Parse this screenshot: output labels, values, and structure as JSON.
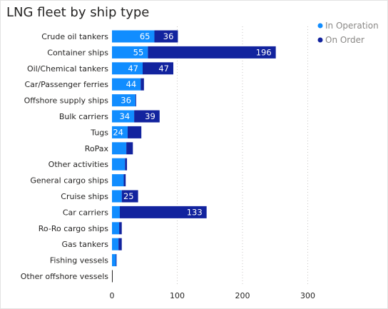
{
  "chart_data": {
    "type": "bar",
    "orientation": "horizontal",
    "stacked": true,
    "title": "LNG fleet by ship type",
    "xlabel": "",
    "ylabel": "",
    "xlim": [
      0,
      300
    ],
    "x_ticks": [
      0,
      100,
      200,
      300
    ],
    "grid": true,
    "legend_position": "top-right",
    "categories": [
      "Crude oil tankers",
      "Container ships",
      "Oil/Chemical tankers",
      "Car/Passenger ferries",
      "Offshore supply ships",
      "Bulk carriers",
      "Tugs",
      "RoPax",
      "Other activities",
      "General cargo ships",
      "Cruise ships",
      "Car carriers",
      "Ro-Ro cargo ships",
      "Gas tankers",
      "Fishing vessels",
      "Other offshore vessels"
    ],
    "series": [
      {
        "name": "In Operation",
        "color": "#118DFF",
        "values": [
          65,
          55,
          47,
          44,
          36,
          34,
          24,
          22,
          20,
          18,
          15,
          12,
          11,
          10,
          6,
          1
        ]
      },
      {
        "name": "On Order",
        "color": "#12239E",
        "values": [
          36,
          196,
          47,
          5,
          1,
          39,
          21,
          10,
          3,
          3,
          25,
          133,
          4,
          5,
          1,
          0
        ]
      }
    ],
    "data_labels": {
      "In Operation": [
        "65",
        "55",
        "47",
        "44",
        "36",
        "34",
        "24",
        "",
        "",
        "",
        "",
        "",
        "",
        "",
        "",
        ""
      ],
      "On Order": [
        "36",
        "196",
        "47",
        "",
        "",
        "39",
        "",
        "",
        "",
        "",
        "25",
        "133",
        "",
        "",
        "",
        ""
      ]
    }
  }
}
